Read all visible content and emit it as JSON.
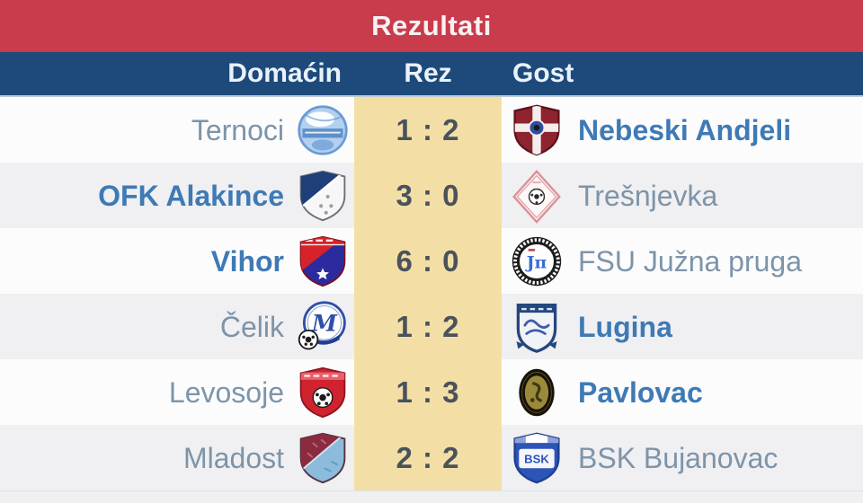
{
  "banner": {
    "title": "Rezultati"
  },
  "columns": {
    "home": "Domaćin",
    "score": "Rez",
    "away": "Gost"
  },
  "colors": {
    "banner_bg": "#c93c4c",
    "banner_text": "#f7f1f3",
    "header_bg": "#1d4a7a",
    "header_text": "#e9f2fa",
    "score_col_bg": "#f3dfa6",
    "score_text": "#4a525c",
    "row_odd_bg": "#fcfcfd",
    "row_even_bg": "#f0eff1",
    "team_regular": "#7d94a9",
    "team_bold": "#3e7ab5"
  },
  "matches": [
    {
      "home": {
        "name": "Ternoci",
        "bold": false,
        "logo": {
          "icon": "ternoci-crest-icon",
          "type": "globe",
          "colors": [
            "#6a9bd4",
            "#b3d0ee",
            "#ffffff",
            "#5588c8"
          ]
        }
      },
      "score": "1 : 2",
      "away": {
        "name": "Nebeski Andjeli",
        "bold": true,
        "logo": {
          "icon": "nebeski-andjeli-crest-icon",
          "type": "shield-cross",
          "colors": [
            "#8e2430",
            "#f3eded",
            "#2f4f9e",
            "#5e141e"
          ]
        }
      }
    },
    {
      "home": {
        "name": "OFK Alakince",
        "bold": true,
        "logo": {
          "icon": "ofk-alakince-crest-icon",
          "type": "shield-diag",
          "colors": [
            "#1e3f7a",
            "#f7f7f7",
            "#9aa0a6",
            "#6b7076"
          ]
        }
      },
      "score": "3 : 0",
      "away": {
        "name": "Trešnjevka",
        "bold": false,
        "logo": {
          "icon": "tresnjevka-crest-icon",
          "type": "diamond",
          "colors": [
            "#d9919b",
            "#fdf7f7",
            "#2b2b2b"
          ]
        }
      }
    },
    {
      "home": {
        "name": "Vihor",
        "bold": true,
        "logo": {
          "icon": "vihor-crest-icon",
          "type": "crest-redblue",
          "colors": [
            "#d62229",
            "#2b2b9e",
            "#ffffff",
            "#7a1020"
          ]
        }
      },
      "score": "6 : 0",
      "away": {
        "name": "FSU Južna pruga",
        "bold": false,
        "logo": {
          "icon": "fsu-juzna-pruga-crest-icon",
          "type": "ring-badge",
          "colors": [
            "#1d1d1d",
            "#ffffff",
            "#3a6bd6"
          ]
        }
      }
    },
    {
      "home": {
        "name": "Čelik",
        "bold": false,
        "logo": {
          "icon": "celik-crest-icon",
          "type": "circle-m",
          "colors": [
            "#2f4fa8",
            "#ffffff",
            "#1c1c1c",
            "#1d3a8f"
          ]
        }
      },
      "score": "1 : 2",
      "away": {
        "name": "Lugina",
        "bold": true,
        "logo": {
          "icon": "lugina-crest-icon",
          "type": "crest-band",
          "colors": [
            "#f2f3f7",
            "#24477e",
            "#3b5fa6"
          ]
        }
      }
    },
    {
      "home": {
        "name": "Levosoje",
        "bold": false,
        "logo": {
          "icon": "levosoje-crest-icon",
          "type": "shield-ball",
          "colors": [
            "#cf2330",
            "#e8606a",
            "#1c1c1c",
            "#8e1620"
          ]
        }
      },
      "score": "1 : 3",
      "away": {
        "name": "Pavlovac",
        "bold": true,
        "logo": {
          "icon": "pavlovac-crest-icon",
          "type": "oval-gold",
          "colors": [
            "#17130a",
            "#9c8a3c",
            "#3f3812"
          ]
        }
      }
    },
    {
      "home": {
        "name": "Mladost",
        "bold": false,
        "logo": {
          "icon": "mladost-crest-icon",
          "type": "shield-diag2",
          "colors": [
            "#8c2a40",
            "#8cbbdb",
            "#53323d"
          ]
        }
      },
      "score": "2 : 2",
      "away": {
        "name": "BSK Bujanovac",
        "bold": false,
        "logo": {
          "icon": "bsk-bujanovac-crest-icon",
          "type": "shield-bsk",
          "colors": [
            "#2d55b8",
            "#ffffff",
            "#1d3f8f"
          ]
        }
      }
    }
  ]
}
